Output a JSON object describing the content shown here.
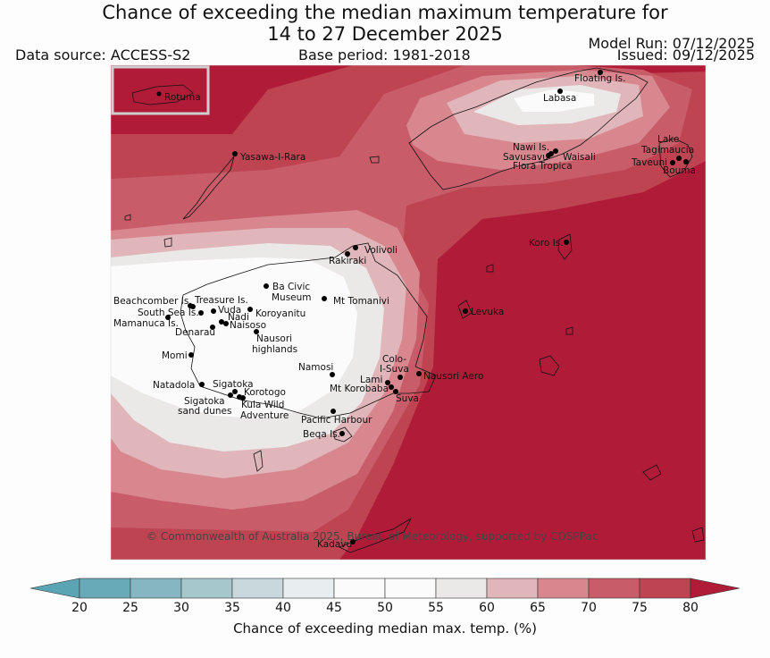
{
  "header": {
    "title_line1": "Chance of exceeding the median maximum temperature for",
    "title_line2": "14 to 27 December 2025",
    "data_source": "Data source: ACCESS-S2",
    "base_period": "Base period: 1981-2018",
    "model_run": "Model Run: 07/12/2025",
    "issued": "Issued: 09/12/2025"
  },
  "map": {
    "inset_label": "Rotuma",
    "copyright": "© Commonwealth of Australia 2025, Bureau of Meteorology, supported by COSPPac",
    "places": [
      {
        "name": "Floating Is.",
        "id": "floating-is"
      },
      {
        "name": "Labasa",
        "id": "labasa"
      },
      {
        "name": "Yasawa-I-Rara",
        "id": "yasawa-i-rara"
      },
      {
        "name": "Lake",
        "id": "lake"
      },
      {
        "name": "Tagimaucia",
        "id": "tagimaucia"
      },
      {
        "name": "Nawi Is.",
        "id": "nawi-is"
      },
      {
        "name": "Savusavu",
        "id": "savusavu"
      },
      {
        "name": "Waisali",
        "id": "waisali"
      },
      {
        "name": "Flora Tropica",
        "id": "flora-tropica"
      },
      {
        "name": "Taveuni",
        "id": "taveuni"
      },
      {
        "name": "Bouma",
        "id": "bouma"
      },
      {
        "name": "Koro Is.",
        "id": "koro-is"
      },
      {
        "name": "Volivoli",
        "id": "volivoli"
      },
      {
        "name": "Rakiraki",
        "id": "rakiraki"
      },
      {
        "name": "Ba Civic",
        "id": "ba-civic"
      },
      {
        "name": "Museum",
        "id": "museum"
      },
      {
        "name": "Mt Tomanivi",
        "id": "mt-tomanivi"
      },
      {
        "name": "Beachcomber Is.",
        "id": "beachcomber-is"
      },
      {
        "name": "Treasure Is.",
        "id": "treasure-is"
      },
      {
        "name": "South Sea Is.",
        "id": "south-sea-is"
      },
      {
        "name": "Vuda",
        "id": "vuda"
      },
      {
        "name": "Koroyanitu",
        "id": "koroyanitu"
      },
      {
        "name": "Nadi",
        "id": "nadi"
      },
      {
        "name": "Mamanuca Is.",
        "id": "mamanuca-is"
      },
      {
        "name": "Naisoso",
        "id": "naisoso"
      },
      {
        "name": "Denarau",
        "id": "denarau"
      },
      {
        "name": "Nausori",
        "id": "nausori"
      },
      {
        "name": "highlands",
        "id": "highlands"
      },
      {
        "name": "Levuka",
        "id": "levuka"
      },
      {
        "name": "Momi",
        "id": "momi"
      },
      {
        "name": "Namosi",
        "id": "namosi"
      },
      {
        "name": "Colo-",
        "id": "colo"
      },
      {
        "name": "I-Suva",
        "id": "i-suva"
      },
      {
        "name": "Nausori Aero",
        "id": "nausori-aero"
      },
      {
        "name": "Lami",
        "id": "lami"
      },
      {
        "name": "Mt Korobaba",
        "id": "mt-korobaba"
      },
      {
        "name": "Suva",
        "id": "suva"
      },
      {
        "name": "Natadola",
        "id": "natadola"
      },
      {
        "name": "Sigatoka",
        "id": "sigatoka"
      },
      {
        "name": "Korotogo",
        "id": "korotogo"
      },
      {
        "name": "Sigatoka",
        "id": "sigatoka-2"
      },
      {
        "name": "sand dunes",
        "id": "sand-dunes"
      },
      {
        "name": "Kula Wild",
        "id": "kula-wild"
      },
      {
        "name": "Adventure",
        "id": "adventure"
      },
      {
        "name": "Pacific Harbour",
        "id": "pacific-harbour"
      },
      {
        "name": "Beqa Is.",
        "id": "beqa-is"
      },
      {
        "name": "Kadavu",
        "id": "kadavu"
      }
    ]
  },
  "colorbar": {
    "label": "Chance of exceeding median max. temp. (%)",
    "ticks": [
      "20",
      "25",
      "30",
      "35",
      "40",
      "45",
      "50",
      "55",
      "60",
      "65",
      "70",
      "75",
      "80"
    ],
    "below_color": "#5aa4b3",
    "above_color": "#b01c38",
    "colors": [
      "#68aab8",
      "#86b6c2",
      "#a6c8cd",
      "#c8d8dc",
      "#e8eeef",
      "#fbfbfb",
      "#fbfbfb",
      "#ebe9e7",
      "#e0b6ba",
      "#d8878f",
      "#c85c68",
      "#be4452"
    ]
  }
}
